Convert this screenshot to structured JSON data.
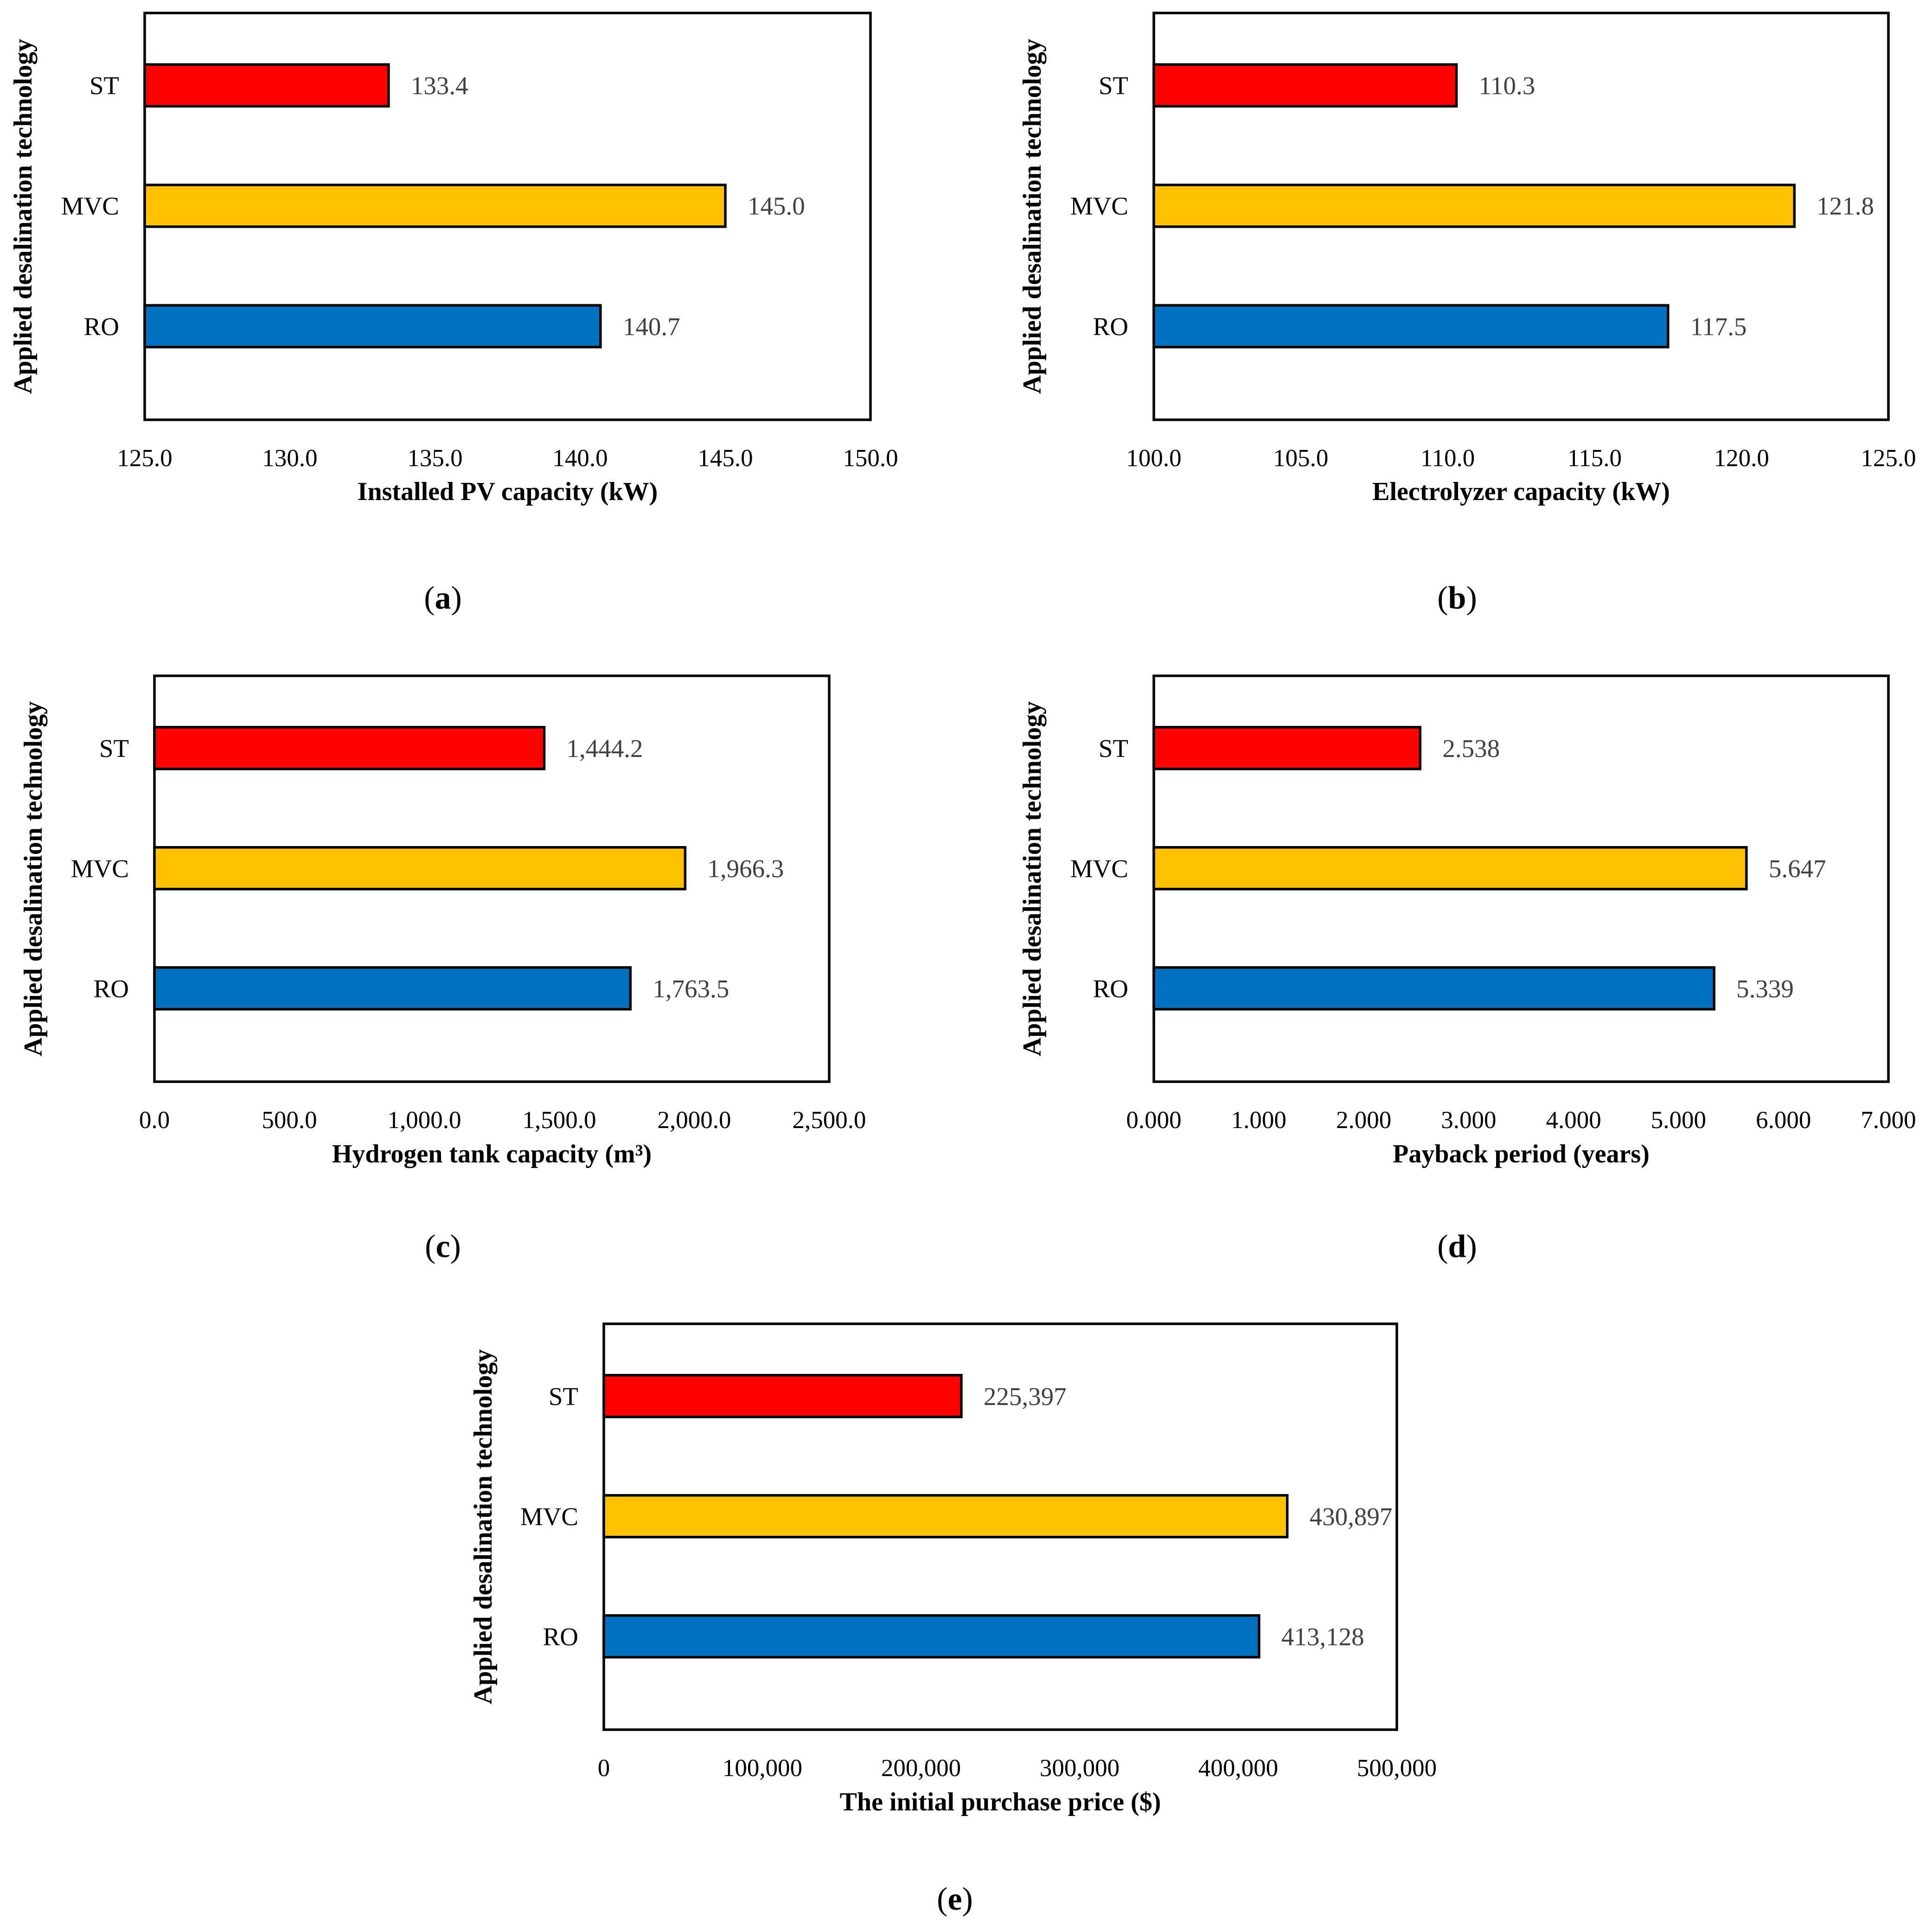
{
  "chart_data": [
    {
      "id": "a",
      "type": "bar",
      "orientation": "horizontal",
      "caption_letter": "a",
      "xlabel": "Installed PV capacity (kW)",
      "ylabel": "Applied desalination technology",
      "categories": [
        "ST",
        "MVC",
        "RO"
      ],
      "values": [
        133.4,
        145.0,
        140.7
      ],
      "value_labels": [
        "133.4",
        "145.0",
        "140.7"
      ],
      "colors": [
        "#ff0000",
        "#ffc000",
        "#0070c0"
      ],
      "xlim": [
        125,
        150
      ],
      "ticks": [
        "125.0",
        "130.0",
        "135.0",
        "140.0",
        "145.0",
        "150.0"
      ]
    },
    {
      "id": "b",
      "type": "bar",
      "orientation": "horizontal",
      "caption_letter": "b",
      "xlabel": "Electrolyzer capacity (kW)",
      "ylabel": "Applied desalination technology",
      "categories": [
        "ST",
        "MVC",
        "RO"
      ],
      "values": [
        110.3,
        121.8,
        117.5
      ],
      "value_labels": [
        "110.3",
        "121.8",
        "117.5"
      ],
      "colors": [
        "#ff0000",
        "#ffc000",
        "#0070c0"
      ],
      "xlim": [
        100,
        125
      ],
      "ticks": [
        "100.0",
        "105.0",
        "110.0",
        "115.0",
        "120.0",
        "125.0"
      ]
    },
    {
      "id": "c",
      "type": "bar",
      "orientation": "horizontal",
      "caption_letter": "c",
      "xlabel": "Hydrogen tank capacity (m³)",
      "ylabel": "Applied desalination technology",
      "categories": [
        "ST",
        "MVC",
        "RO"
      ],
      "values": [
        1444.2,
        1966.3,
        1763.5
      ],
      "value_labels": [
        "1,444.2",
        "1,966.3",
        "1,763.5"
      ],
      "colors": [
        "#ff0000",
        "#ffc000",
        "#0070c0"
      ],
      "xlim": [
        0,
        2500
      ],
      "ticks": [
        "0.0",
        "500.0",
        "1,000.0",
        "1,500.0",
        "2,000.0",
        "2,500.0"
      ]
    },
    {
      "id": "d",
      "type": "bar",
      "orientation": "horizontal",
      "caption_letter": "d",
      "xlabel": "Payback period (years)",
      "ylabel": "Applied desalination technology",
      "categories": [
        "ST",
        "MVC",
        "RO"
      ],
      "values": [
        2.538,
        5.647,
        5.339
      ],
      "value_labels": [
        "2.538",
        "5.647",
        "5.339"
      ],
      "colors": [
        "#ff0000",
        "#ffc000",
        "#0070c0"
      ],
      "xlim": [
        0,
        7
      ],
      "ticks": [
        "0.000",
        "1.000",
        "2.000",
        "3.000",
        "4.000",
        "5.000",
        "6.000",
        "7.000"
      ]
    },
    {
      "id": "e",
      "type": "bar",
      "orientation": "horizontal",
      "caption_letter": "e",
      "xlabel": "The initial purchase price ($)",
      "ylabel": "Applied desalination technology",
      "categories": [
        "ST",
        "MVC",
        "RO"
      ],
      "values": [
        225397,
        430897,
        413128
      ],
      "value_labels": [
        "225,397",
        "430,897",
        "413,128"
      ],
      "colors": [
        "#ff0000",
        "#ffc000",
        "#0070c0"
      ],
      "xlim": [
        0,
        500000
      ],
      "ticks": [
        "0",
        "100,000",
        "200,000",
        "300,000",
        "400,000",
        "500,000"
      ]
    }
  ]
}
